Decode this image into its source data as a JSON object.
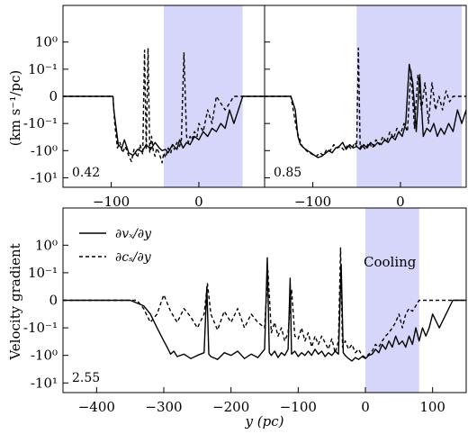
{
  "figure": {
    "ylabel_top": "(km s⁻¹/pc)",
    "ylabel_bottom": "Velocity gradient",
    "xlabel": "y (pc)"
  },
  "colors": {
    "shade": "#d6d6fa",
    "line": "#000000"
  },
  "chart_data": [
    {
      "type": "line",
      "panel": "top-left",
      "label": "0.42",
      "xlim": [
        -155,
        75
      ],
      "yscale": "symlog",
      "ytick_labels": [
        "10⁰",
        "10⁻¹",
        "0",
        "-10⁻¹",
        "-10⁰",
        "-10¹"
      ],
      "ytick_values": [
        1,
        0.1,
        0,
        -0.1,
        -1,
        -10
      ],
      "xtick_values": [
        -100,
        0
      ],
      "xtick_labels": [
        "−100",
        "0"
      ],
      "shaded_x": [
        -40,
        50
      ],
      "series": [
        {
          "style": "solid",
          "x": [
            -155,
            -98,
            -97,
            -92,
            -88,
            -85,
            -80,
            -75,
            -70,
            -65,
            -60,
            -55,
            -50,
            -45,
            -42,
            -38,
            -35,
            -30,
            -25,
            -22,
            -18,
            -14,
            -10,
            -5,
            0,
            5,
            10,
            15,
            20,
            25,
            30,
            35,
            40,
            45,
            50,
            60,
            75
          ],
          "y": [
            0,
            0,
            -0.05,
            -0.6,
            -0.8,
            -0.4,
            -1.2,
            -1.5,
            -0.9,
            -1.1,
            -0.6,
            -0.9,
            -0.5,
            -0.8,
            -1.0,
            -0.9,
            -1.2,
            -0.6,
            -0.9,
            -0.4,
            -0.8,
            -0.5,
            -0.6,
            -0.3,
            -0.4,
            -0.2,
            -0.3,
            -0.15,
            -0.2,
            -0.1,
            -0.15,
            -0.05,
            -0.1,
            -0.05,
            0,
            0,
            0
          ]
        },
        {
          "style": "dashed",
          "x": [
            -155,
            -98,
            -96,
            -93,
            -90,
            -87,
            -84,
            -80,
            -77,
            -74,
            -70,
            -67,
            -64,
            -62,
            -60,
            -58,
            -56,
            -54,
            -52,
            -50,
            -48,
            -45,
            -42,
            -40,
            -38,
            -35,
            -32,
            -30,
            -28,
            -25,
            -22,
            -20,
            -17,
            -14,
            -12,
            -10,
            -8,
            -5,
            -2,
            0,
            5,
            10,
            15,
            20,
            30,
            40,
            50,
            60,
            75
          ],
          "y": [
            0,
            0,
            -0.1,
            -0.8,
            -0.5,
            -1.2,
            -0.7,
            -1.5,
            -2.5,
            -0.9,
            -1.8,
            -0.6,
            -1.4,
            0.5,
            -0.9,
            0.6,
            -1.2,
            -0.3,
            -1.0,
            -1.6,
            -0.8,
            -1.3,
            -2.8,
            -1.2,
            -1.8,
            -0.8,
            -1.2,
            -0.6,
            -0.9,
            -0.5,
            -0.7,
            -0.4,
            0.4,
            -0.3,
            -0.5,
            -0.3,
            -0.4,
            -0.2,
            -0.3,
            -0.1,
            -0.2,
            -0.05,
            -0.1,
            0,
            -0.05,
            0,
            0,
            0,
            0
          ]
        }
      ]
    },
    {
      "type": "line",
      "panel": "top-right",
      "label": "0.85",
      "xlim": [
        -155,
        75
      ],
      "yscale": "symlog",
      "ytick_values": [
        1,
        0.1,
        0,
        -0.1,
        -1,
        -10
      ],
      "xtick_values": [
        -100,
        0
      ],
      "xtick_labels": [
        "−100",
        "0"
      ],
      "shaded_x": [
        -50,
        70
      ],
      "series": [
        {
          "style": "solid",
          "x": [
            -155,
            -125,
            -120,
            -117,
            -114,
            -110,
            -106,
            -102,
            -98,
            -94,
            -90,
            -86,
            -82,
            -78,
            -74,
            -70,
            -66,
            -62,
            -58,
            -54,
            -50,
            -46,
            -42,
            -38,
            -34,
            -30,
            -26,
            -22,
            -18,
            -14,
            -10,
            -6,
            -2,
            2,
            6,
            10,
            14,
            18,
            22,
            26,
            30,
            34,
            38,
            42,
            46,
            50,
            55,
            60,
            65,
            70,
            75
          ],
          "y": [
            0,
            0,
            -0.05,
            -0.3,
            -0.6,
            -0.8,
            -1.0,
            -1.2,
            -1.5,
            -1.8,
            -1.6,
            -1.3,
            -1.0,
            -1.2,
            -0.8,
            -0.7,
            -0.5,
            -0.9,
            -0.6,
            -0.8,
            -0.7,
            -0.9,
            -0.6,
            -0.8,
            -0.5,
            -0.7,
            -0.5,
            -0.6,
            -0.4,
            -0.5,
            -0.3,
            -0.4,
            -0.2,
            -0.3,
            -0.1,
            0.15,
            0.05,
            -0.2,
            0.08,
            -0.3,
            -0.15,
            -0.2,
            -0.1,
            -0.3,
            -0.15,
            -0.25,
            -0.1,
            -0.2,
            -0.05,
            -0.1,
            -0.05
          ]
        },
        {
          "style": "dashed",
          "x": [
            -155,
            -125,
            -118,
            -112,
            -106,
            -100,
            -96,
            -92,
            -88,
            -84,
            -80,
            -76,
            -72,
            -68,
            -64,
            -60,
            -56,
            -52,
            -50,
            -48,
            -46,
            -44,
            -40,
            -36,
            -32,
            -28,
            -24,
            -20,
            -16,
            -12,
            -8,
            -4,
            0,
            4,
            8,
            12,
            16,
            20,
            24,
            28,
            32,
            36,
            40,
            44,
            48,
            52,
            56,
            60,
            65,
            70,
            75
          ],
          "y": [
            0,
            0,
            -0.2,
            -0.7,
            -1.1,
            -1.4,
            -1.6,
            -1.2,
            -1.5,
            -0.9,
            -1.0,
            -0.6,
            -0.8,
            -0.7,
            -1.0,
            -0.6,
            -0.9,
            -0.5,
            -0.7,
            0.6,
            -0.8,
            -0.6,
            -0.9,
            -0.5,
            -0.8,
            -0.4,
            -0.6,
            -0.3,
            -0.5,
            -0.2,
            -0.35,
            -0.15,
            -0.25,
            -0.1,
            -0.2,
            0.1,
            -0.15,
            0.08,
            -0.05,
            0.05,
            -0.1,
            0.05,
            -0.05,
            0,
            -0.05,
            0.02,
            -0.02,
            0,
            0,
            0,
            0
          ]
        }
      ]
    },
    {
      "type": "line",
      "panel": "bottom",
      "label": "2.55",
      "xlim": [
        -450,
        150
      ],
      "yscale": "symlog",
      "ytick_labels": [
        "10⁰",
        "10⁻¹",
        "0",
        "-10⁻¹",
        "-10⁰",
        "-10¹"
      ],
      "ytick_values": [
        1,
        0.1,
        0,
        -0.1,
        -1,
        -10
      ],
      "xtick_values": [
        -400,
        -300,
        -200,
        -100,
        0,
        100
      ],
      "xtick_labels": [
        "−400",
        "−300",
        "−200",
        "−100",
        "0",
        "100"
      ],
      "shaded_x": [
        0,
        80
      ],
      "shade_label": "Cooling",
      "legend": [
        "∂vₓ/∂y",
        "∂cₛ/∂y"
      ],
      "series": [
        {
          "style": "solid",
          "name": "∂vₓ/∂y",
          "x": [
            -450,
            -350,
            -330,
            -320,
            -310,
            -300,
            -295,
            -290,
            -285,
            -280,
            -270,
            -260,
            -250,
            -240,
            -236,
            -233,
            -230,
            -220,
            -210,
            -200,
            -190,
            -180,
            -170,
            -160,
            -150,
            -146,
            -143,
            -140,
            -135,
            -130,
            -125,
            -120,
            -115,
            -112,
            -110,
            -105,
            -100,
            -95,
            -90,
            -85,
            -80,
            -75,
            -70,
            -65,
            -60,
            -55,
            -50,
            -45,
            -40,
            -36,
            -33,
            -30,
            -25,
            -20,
            -15,
            -10,
            -5,
            0,
            5,
            10,
            15,
            20,
            25,
            30,
            35,
            40,
            45,
            50,
            55,
            60,
            65,
            70,
            75,
            80,
            85,
            90,
            95,
            100,
            110,
            120,
            130,
            150
          ],
          "y": [
            0,
            0,
            -0.02,
            -0.05,
            -0.1,
            -0.3,
            -0.5,
            -0.9,
            -0.7,
            -1.1,
            -0.9,
            -1.3,
            -1.0,
            -0.8,
            0.05,
            -0.9,
            -1.1,
            -1.4,
            -0.8,
            -1.0,
            -0.7,
            -1.3,
            -0.9,
            -1.2,
            -0.6,
            0.35,
            -0.8,
            -1.0,
            -0.7,
            -1.2,
            -0.8,
            -1.0,
            -0.6,
            0.08,
            -0.9,
            -0.7,
            -1.1,
            -0.8,
            -1.0,
            -0.7,
            -1.0,
            -0.6,
            -0.9,
            -0.7,
            -1.1,
            -0.8,
            -1.0,
            -0.7,
            -0.9,
            0.2,
            -0.8,
            -1.0,
            -1.3,
            -1.6,
            -1.2,
            -1.4,
            -1.1,
            -1.3,
            -1.0,
            -0.9,
            -0.6,
            -0.8,
            -0.4,
            -0.6,
            -0.3,
            -0.5,
            -0.2,
            -0.4,
            -0.3,
            -0.5,
            -0.2,
            -0.4,
            -0.1,
            -0.3,
            -0.1,
            -0.2,
            -0.1,
            -0.05,
            -0.1,
            -0.05,
            0,
            0
          ]
        },
        {
          "style": "dashed",
          "name": "∂cₛ/∂y",
          "x": [
            -450,
            -340,
            -330,
            -320,
            -310,
            -300,
            -290,
            -280,
            -270,
            -260,
            -250,
            -240,
            -235,
            -230,
            -220,
            -210,
            -200,
            -190,
            -180,
            -170,
            -160,
            -150,
            -145,
            -140,
            -135,
            -130,
            -125,
            -120,
            -115,
            -110,
            -105,
            -100,
            -95,
            -90,
            -85,
            -80,
            -75,
            -70,
            -65,
            -60,
            -55,
            -50,
            -45,
            -40,
            -37,
            -34,
            -30,
            -25,
            -20,
            -15,
            -10,
            -5,
            0,
            5,
            10,
            15,
            20,
            25,
            30,
            35,
            40,
            45,
            50,
            55,
            60,
            65,
            70,
            75,
            80,
            90,
            100,
            110,
            120,
            130,
            150
          ],
          "y": [
            0,
            0,
            -0.03,
            -0.08,
            -0.05,
            0.02,
            -0.04,
            -0.08,
            -0.03,
            -0.06,
            -0.1,
            -0.05,
            0.06,
            -0.05,
            -0.12,
            -0.04,
            -0.08,
            -0.03,
            -0.1,
            -0.05,
            -0.08,
            -0.1,
            0.12,
            -0.15,
            -0.08,
            -0.2,
            -0.1,
            -0.3,
            -0.15,
            0.04,
            -0.2,
            -0.25,
            -0.1,
            -0.3,
            -0.15,
            -0.5,
            -0.2,
            -0.4,
            -0.2,
            -0.35,
            -0.6,
            -0.25,
            -0.8,
            -0.3,
            0.8,
            -0.5,
            -0.3,
            -0.6,
            -0.4,
            -0.8,
            -0.6,
            -1.0,
            -1.2,
            -0.9,
            -0.7,
            -0.4,
            -0.5,
            -0.3,
            -0.2,
            -0.15,
            -0.1,
            -0.08,
            -0.05,
            -0.1,
            -0.05,
            -0.03,
            -0.04,
            -0.02,
            0,
            0,
            0,
            0,
            0,
            0,
            0
          ]
        }
      ]
    }
  ]
}
